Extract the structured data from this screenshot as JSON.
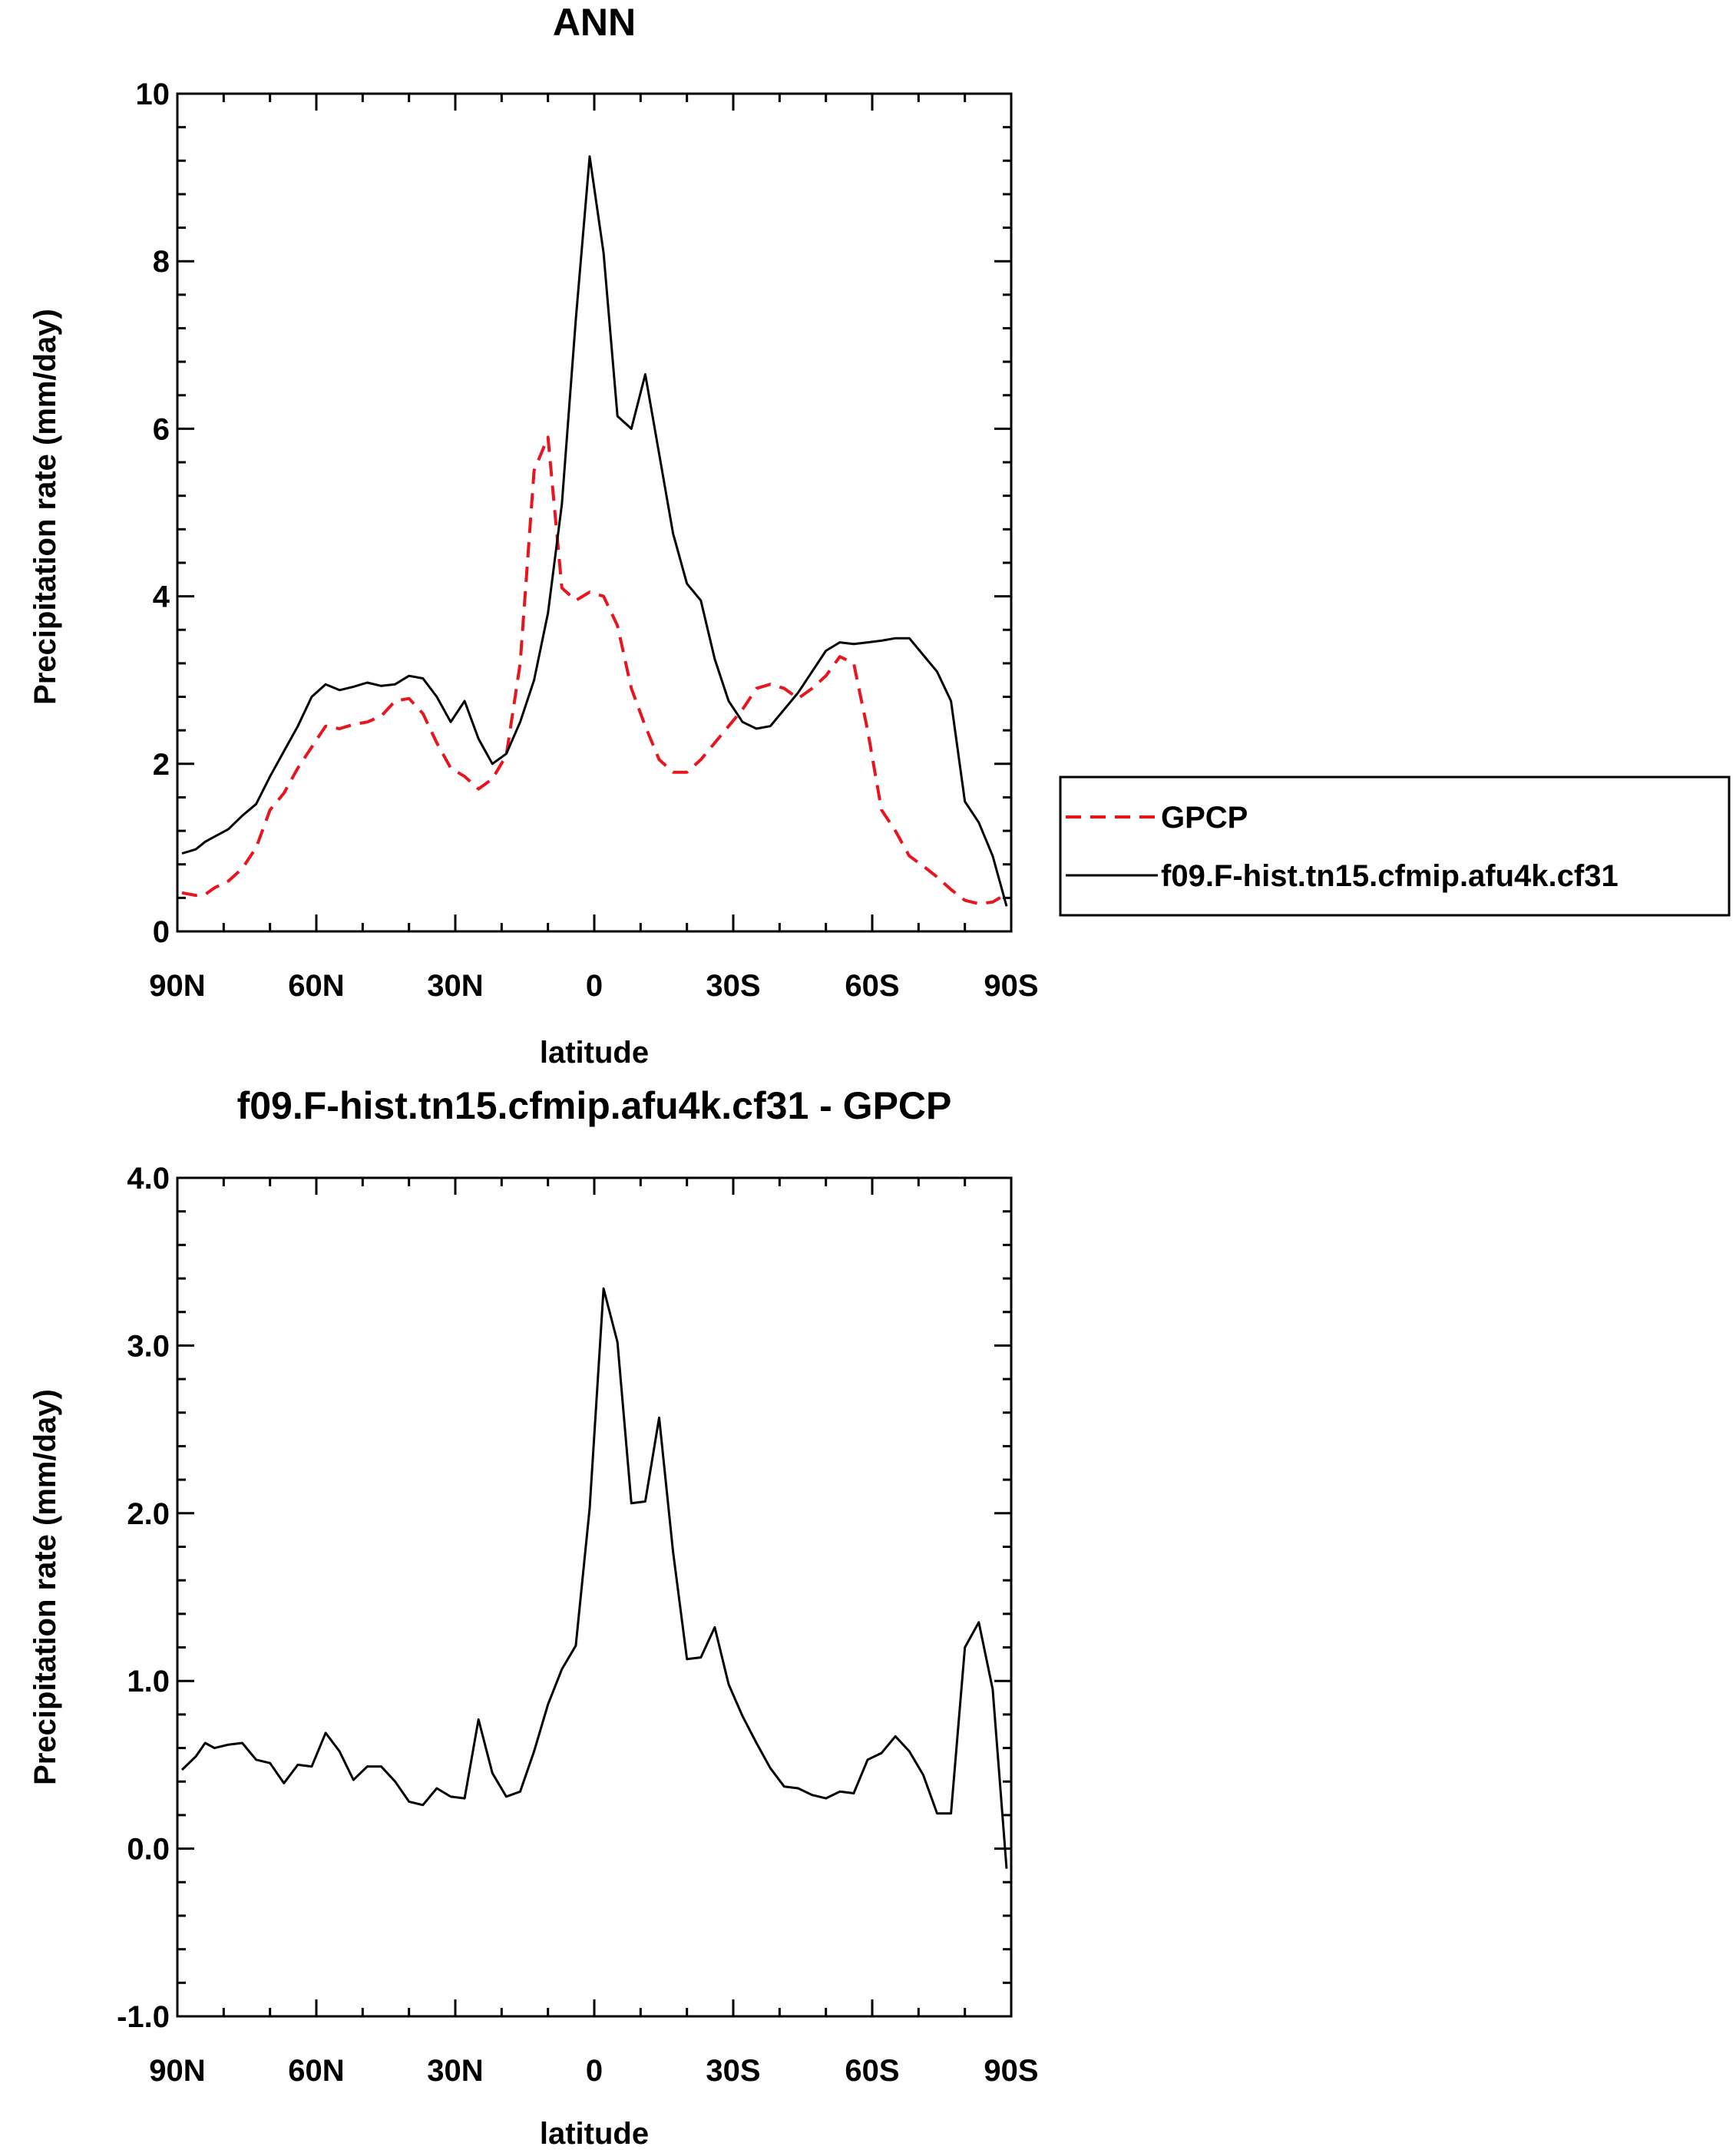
{
  "chart_data": [
    {
      "type": "line",
      "title": "ANN",
      "xlabel": "latitude",
      "ylabel": "Precipitation rate (mm/day)",
      "xlim": [
        90,
        -90
      ],
      "ylim": [
        0,
        10
      ],
      "x_ticks": [
        90,
        60,
        30,
        0,
        -30,
        -60,
        -90
      ],
      "x_tick_labels": [
        "90N",
        "60N",
        "30N",
        "0",
        "30S",
        "60S",
        "90S"
      ],
      "y_ticks": [
        0,
        2,
        4,
        6,
        8,
        10
      ],
      "y_tick_labels": [
        "0",
        "2",
        "4",
        "6",
        "8",
        "10"
      ],
      "legend_position": "right",
      "series": [
        {
          "name": "GPCP",
          "color": "#e8141e",
          "dash": "dashed",
          "x": [
            89,
            86,
            84,
            82,
            79,
            76,
            73,
            70,
            67,
            64,
            61,
            58,
            55,
            52,
            49,
            46,
            43,
            40,
            37,
            34,
            31,
            28,
            25,
            22,
            19,
            16,
            13,
            10,
            7,
            4,
            1,
            -2,
            -5,
            -8,
            -11,
            -14,
            -17,
            -20,
            -23,
            -26,
            -29,
            -32,
            -35,
            -38,
            -41,
            -44,
            -47,
            -50,
            -53,
            -56,
            -59,
            -62,
            -65,
            -68,
            -71,
            -74,
            -77,
            -80,
            -83,
            -86,
            -89
          ],
          "y": [
            0.46,
            0.43,
            0.44,
            0.52,
            0.6,
            0.75,
            1.0,
            1.45,
            1.65,
            1.95,
            2.2,
            2.45,
            2.42,
            2.47,
            2.5,
            2.57,
            2.75,
            2.78,
            2.6,
            2.25,
            1.95,
            1.85,
            1.7,
            1.82,
            2.1,
            3.2,
            5.5,
            5.9,
            4.1,
            3.95,
            4.05,
            4.0,
            3.65,
            2.9,
            2.45,
            2.05,
            1.9,
            1.9,
            2.05,
            2.25,
            2.45,
            2.65,
            2.9,
            2.95,
            2.9,
            2.78,
            2.9,
            3.05,
            3.28,
            3.2,
            2.4,
            1.45,
            1.2,
            0.9,
            0.78,
            0.65,
            0.5,
            0.37,
            0.33,
            0.35,
            0.45
          ]
        },
        {
          "name": "f09.F-hist.tn15.cfmip.afu4k.cf31",
          "color": "#000000",
          "dash": "solid",
          "x": [
            89,
            86,
            84,
            82,
            79,
            76,
            73,
            70,
            67,
            64,
            61,
            58,
            55,
            52,
            49,
            46,
            43,
            40,
            37,
            34,
            31,
            28,
            25,
            22,
            19,
            16,
            13,
            10,
            7,
            4,
            1,
            -2,
            -5,
            -8,
            -11,
            -14,
            -17,
            -20,
            -23,
            -26,
            -29,
            -32,
            -35,
            -38,
            -41,
            -44,
            -47,
            -50,
            -53,
            -56,
            -59,
            -62,
            -65,
            -68,
            -71,
            -74,
            -77,
            -80,
            -83,
            -86,
            -89
          ],
          "y": [
            0.93,
            0.98,
            1.07,
            1.13,
            1.22,
            1.38,
            1.52,
            1.85,
            2.15,
            2.45,
            2.8,
            2.95,
            2.88,
            2.92,
            2.97,
            2.93,
            2.95,
            3.05,
            3.02,
            2.8,
            2.5,
            2.75,
            2.3,
            2.0,
            2.12,
            2.5,
            3.0,
            3.8,
            5.1,
            7.3,
            9.25,
            8.1,
            6.15,
            6.0,
            6.65,
            5.7,
            4.75,
            4.15,
            3.95,
            3.25,
            2.75,
            2.5,
            2.42,
            2.45,
            2.65,
            2.85,
            3.1,
            3.35,
            3.45,
            3.43,
            3.45,
            3.47,
            3.5,
            3.5,
            3.3,
            3.1,
            2.75,
            1.55,
            1.3,
            0.9,
            0.3
          ]
        }
      ]
    },
    {
      "type": "line",
      "title": "f09.F-hist.tn15.cfmip.afu4k.cf31 - GPCP",
      "xlabel": "latitude",
      "ylabel": "Precipitation rate (mm/day)",
      "xlim": [
        90,
        -90
      ],
      "ylim": [
        -1.0,
        4.0
      ],
      "x_ticks": [
        90,
        60,
        30,
        0,
        -30,
        -60,
        -90
      ],
      "x_tick_labels": [
        "90N",
        "60N",
        "30N",
        "0",
        "30S",
        "60S",
        "90S"
      ],
      "y_ticks": [
        -1.0,
        0.0,
        1.0,
        2.0,
        3.0,
        4.0
      ],
      "y_tick_labels": [
        "-1.0",
        "0.0",
        "1.0",
        "2.0",
        "3.0",
        "4.0"
      ],
      "series": [
        {
          "name": "f09.F-hist.tn15.cfmip.afu4k.cf31 - GPCP",
          "color": "#000000",
          "dash": "solid",
          "x": [
            89,
            86,
            84,
            82,
            79,
            76,
            73,
            70,
            67,
            64,
            61,
            58,
            55,
            52,
            49,
            46,
            43,
            40,
            37,
            34,
            31,
            28,
            25,
            22,
            19,
            16,
            13,
            10,
            7,
            4,
            1,
            -2,
            -5,
            -8,
            -11,
            -14,
            -17,
            -20,
            -23,
            -26,
            -29,
            -32,
            -35,
            -38,
            -41,
            -44,
            -47,
            -50,
            -53,
            -56,
            -59,
            -62,
            -65,
            -68,
            -71,
            -74,
            -77,
            -80,
            -83,
            -86,
            -89
          ],
          "y": [
            0.47,
            0.55,
            0.63,
            0.6,
            0.62,
            0.63,
            0.53,
            0.51,
            0.39,
            0.5,
            0.49,
            0.69,
            0.58,
            0.41,
            0.49,
            0.49,
            0.4,
            0.28,
            0.26,
            0.36,
            0.31,
            0.3,
            0.77,
            0.45,
            0.31,
            0.34,
            0.58,
            0.86,
            1.07,
            1.21,
            2.03,
            3.34,
            3.02,
            2.06,
            2.07,
            2.57,
            1.77,
            1.13,
            1.14,
            1.32,
            0.98,
            0.79,
            0.63,
            0.48,
            0.37,
            0.36,
            0.32,
            0.3,
            0.34,
            0.33,
            0.53,
            0.57,
            0.67,
            0.58,
            0.44,
            0.21,
            0.21,
            1.2,
            1.35,
            0.95,
            -0.12
          ]
        }
      ]
    }
  ]
}
